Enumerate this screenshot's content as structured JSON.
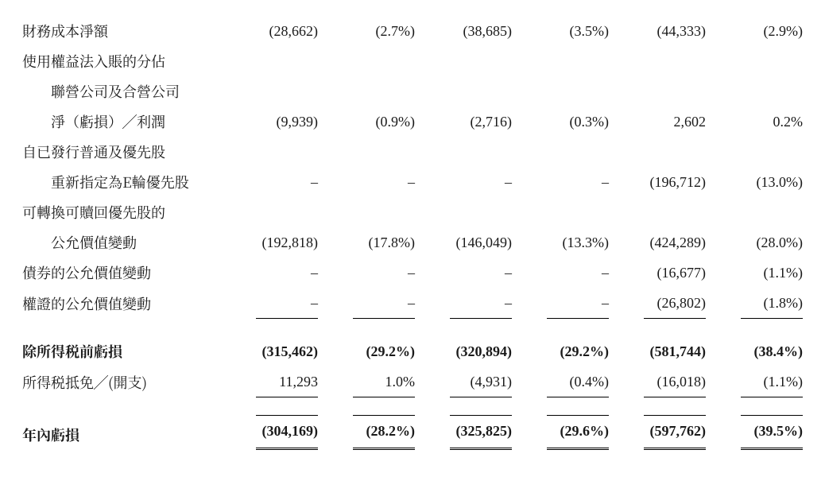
{
  "table": {
    "col_count": 6,
    "rows": [
      {
        "label": "財務成本淨額",
        "indent": false,
        "bold": false,
        "cells": [
          "(28,662)",
          "(2.7%)",
          "(38,685)",
          "(3.5%)",
          "(44,333)",
          "(2.9%)"
        ],
        "borders": [
          "",
          "",
          "",
          "",
          "",
          ""
        ]
      },
      {
        "label": "使用權益法入賬的分佔",
        "indent": false,
        "bold": false,
        "cells": [
          "",
          "",
          "",
          "",
          "",
          ""
        ],
        "borders": [
          "",
          "",
          "",
          "",
          "",
          ""
        ]
      },
      {
        "label": "聯營公司及合營公司",
        "indent": true,
        "bold": false,
        "cells": [
          "",
          "",
          "",
          "",
          "",
          ""
        ],
        "borders": [
          "",
          "",
          "",
          "",
          "",
          ""
        ]
      },
      {
        "label": "淨（虧損）╱利潤",
        "indent": true,
        "bold": false,
        "cells": [
          "(9,939)",
          "(0.9%)",
          "(2,716)",
          "(0.3%)",
          "2,602",
          "0.2%"
        ],
        "borders": [
          "",
          "",
          "",
          "",
          "",
          ""
        ]
      },
      {
        "label": "自已發行普通及優先股",
        "indent": false,
        "bold": false,
        "cells": [
          "",
          "",
          "",
          "",
          "",
          ""
        ],
        "borders": [
          "",
          "",
          "",
          "",
          "",
          ""
        ]
      },
      {
        "label": "重新指定為E輪優先股",
        "indent": true,
        "bold": false,
        "cells": [
          "–",
          "–",
          "–",
          "–",
          "(196,712)",
          "(13.0%)"
        ],
        "borders": [
          "",
          "",
          "",
          "",
          "",
          ""
        ]
      },
      {
        "label": "可轉換可贖回優先股的",
        "indent": false,
        "bold": false,
        "cells": [
          "",
          "",
          "",
          "",
          "",
          ""
        ],
        "borders": [
          "",
          "",
          "",
          "",
          "",
          ""
        ]
      },
      {
        "label": "公允價值變動",
        "indent": true,
        "bold": false,
        "cells": [
          "(192,818)",
          "(17.8%)",
          "(146,049)",
          "(13.3%)",
          "(424,289)",
          "(28.0%)"
        ],
        "borders": [
          "",
          "",
          "",
          "",
          "",
          ""
        ]
      },
      {
        "label": "債券的公允價值變動",
        "indent": false,
        "bold": false,
        "cells": [
          "–",
          "–",
          "–",
          "–",
          "(16,677)",
          "(1.1%)"
        ],
        "borders": [
          "",
          "",
          "",
          "",
          "",
          ""
        ]
      },
      {
        "label": "權證的公允價值變動",
        "indent": false,
        "bold": false,
        "cells": [
          "–",
          "–",
          "–",
          "–",
          "(26,802)",
          "(1.8%)"
        ],
        "borders": [
          "b",
          "b",
          "b",
          "b",
          "b",
          "b"
        ]
      },
      {
        "spacer": true
      },
      {
        "label": "除所得税前虧損",
        "indent": false,
        "bold": true,
        "cells": [
          "(315,462)",
          "(29.2%)",
          "(320,894)",
          "(29.2%)",
          "(581,744)",
          "(38.4%)"
        ],
        "borders": [
          "",
          "",
          "",
          "",
          "",
          ""
        ]
      },
      {
        "label": "所得税抵免╱(開支)",
        "indent": false,
        "bold": false,
        "cells": [
          "11,293",
          "1.0%",
          "(4,931)",
          "(0.4%)",
          "(16,018)",
          "(1.1%)"
        ],
        "borders": [
          "b",
          "b",
          "b",
          "b",
          "b",
          "b"
        ]
      },
      {
        "spacer": true
      },
      {
        "label": "年內虧損",
        "indent": false,
        "bold": true,
        "cells": [
          "(304,169)",
          "(28.2%)",
          "(325,825)",
          "(29.6%)",
          "(597,762)",
          "(39.5%)"
        ],
        "borders": [
          "d",
          "d",
          "d",
          "d",
          "d",
          "d"
        ]
      }
    ]
  },
  "style": {
    "font_size_pt": 18,
    "text_color": "#1a1a1a",
    "background_color": "#ffffff",
    "border_color": "#000000"
  }
}
